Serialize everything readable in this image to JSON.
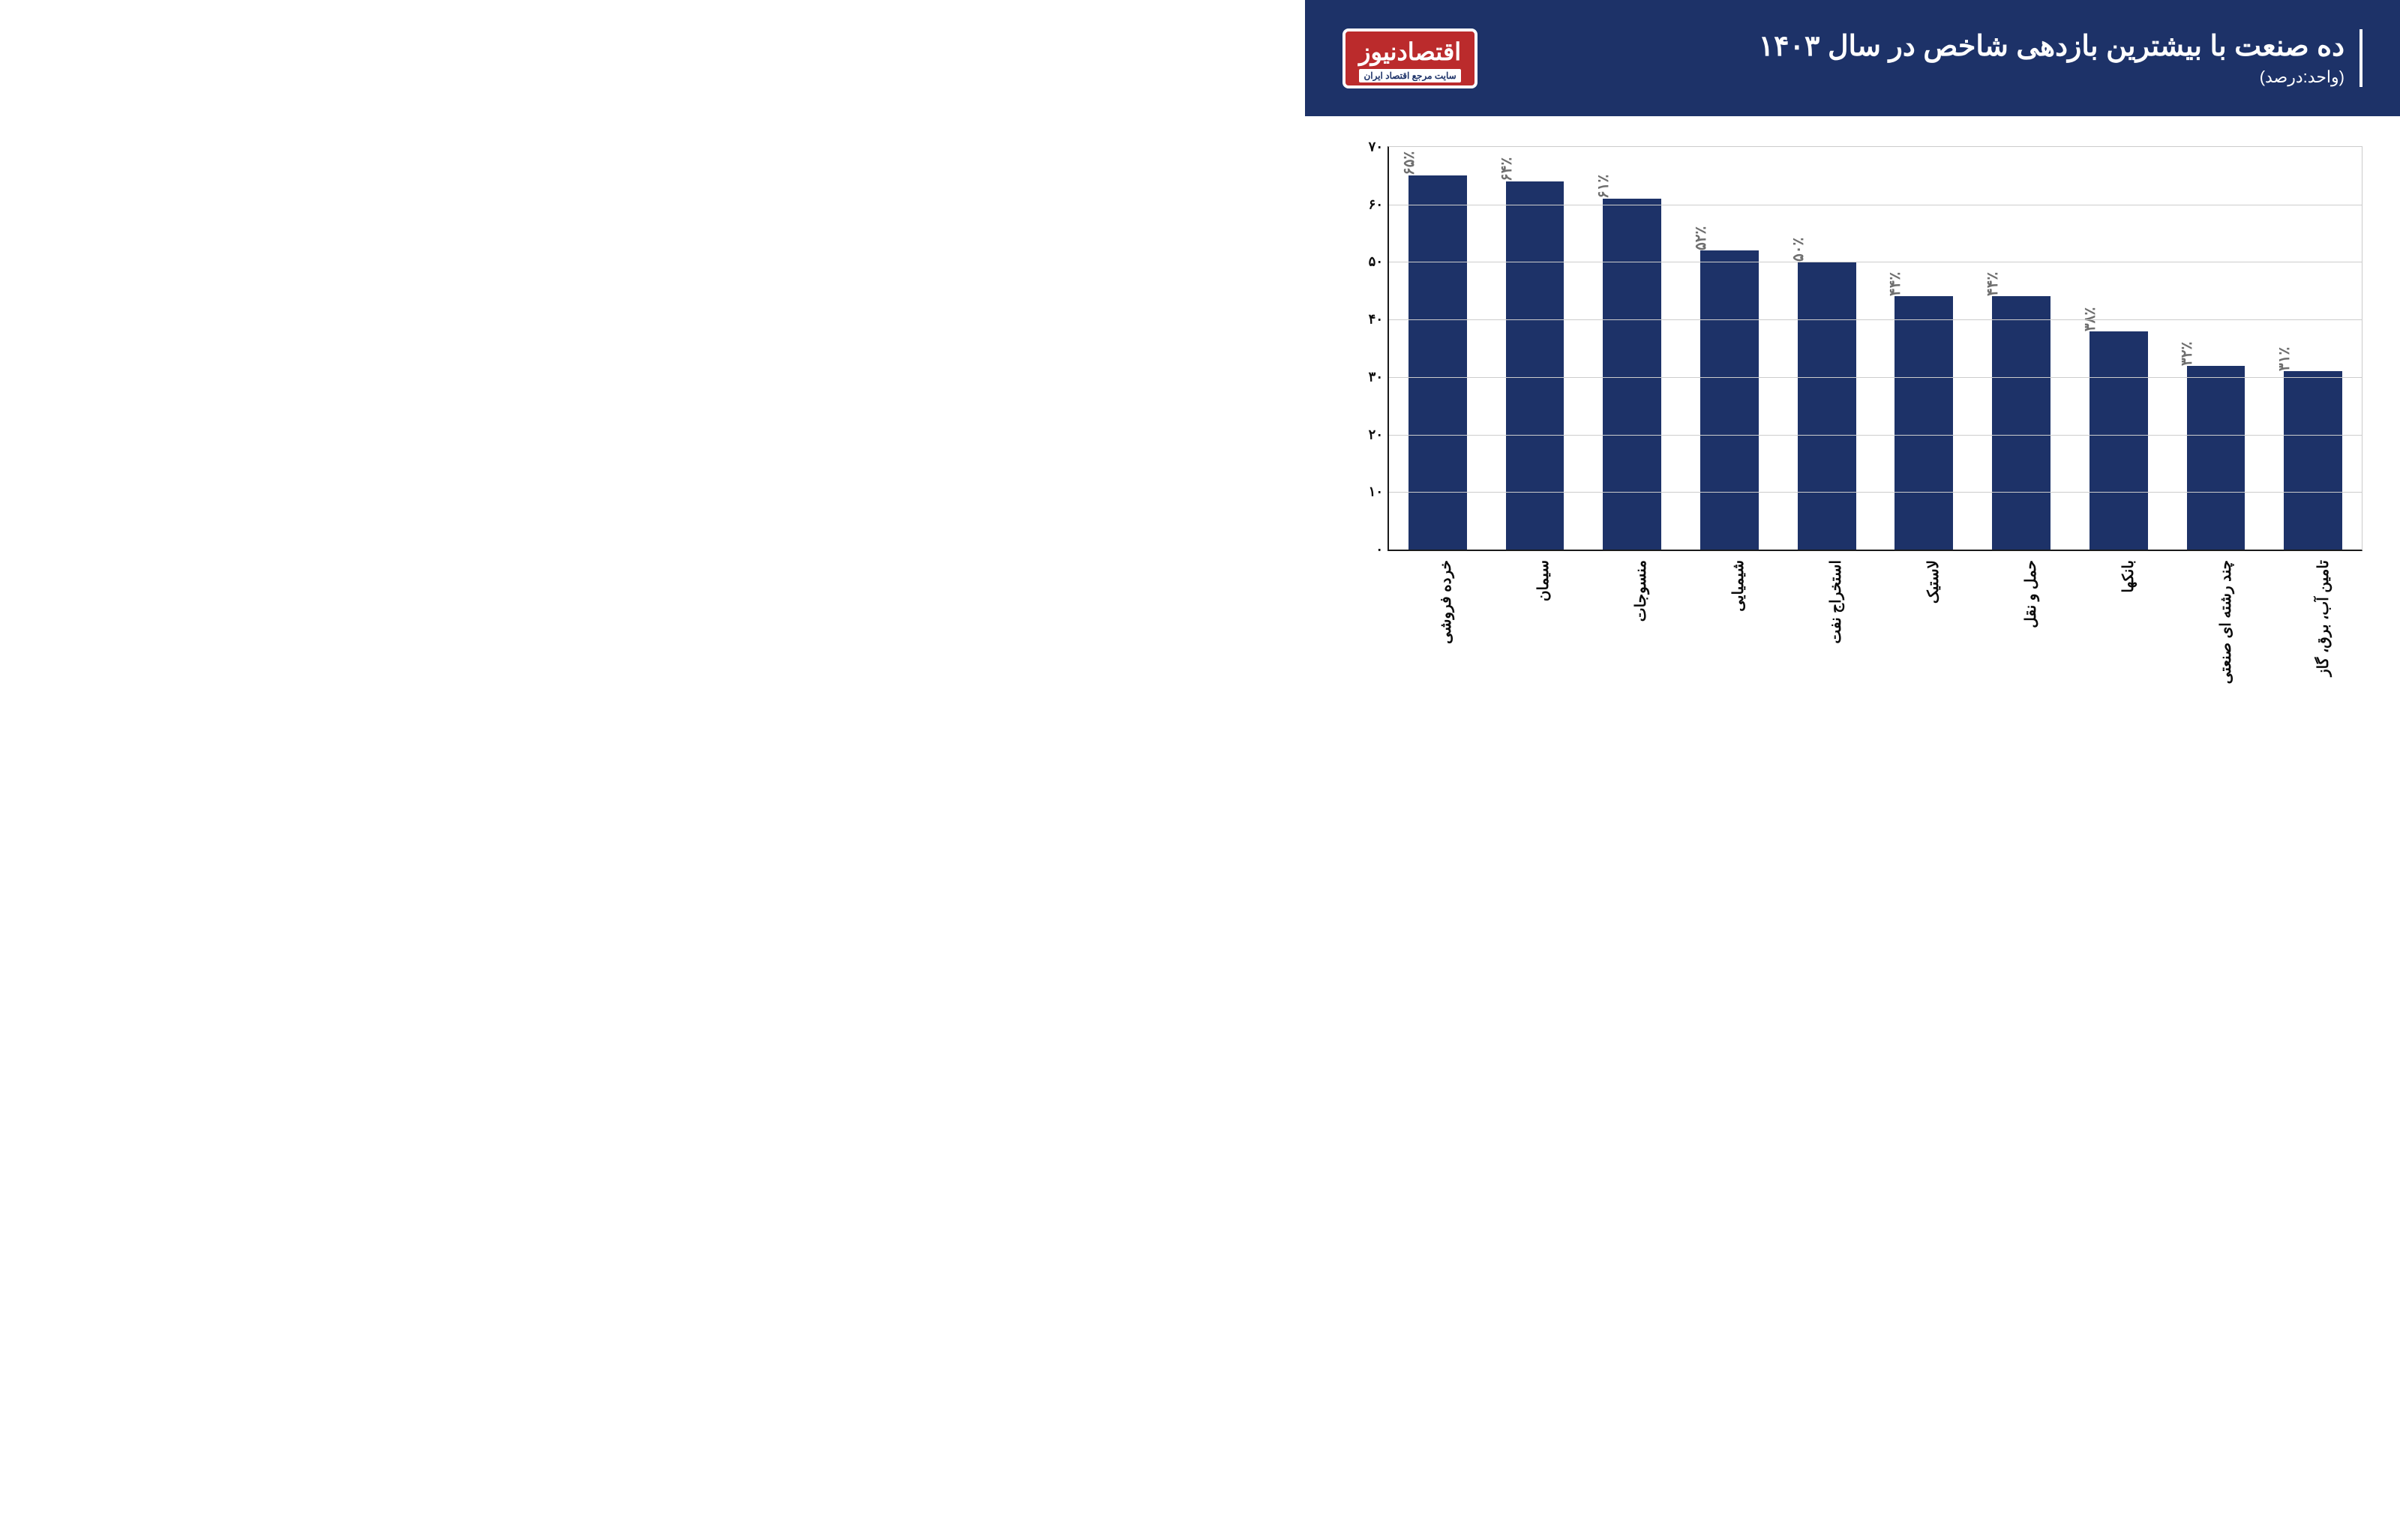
{
  "header": {
    "title": "ده صنعت با بیشترین بازدهی شاخص در سال ۱۴۰۳",
    "subtitle": "(واحد:درصد)",
    "logo_main": "اقتصادنیوز",
    "logo_sub": "سایت مرجع اقتصاد ایران"
  },
  "chart": {
    "type": "bar",
    "ylim": [
      0,
      70
    ],
    "ytick_step": 10,
    "yticks": [
      "۰",
      "۱۰",
      "۲۰",
      "۳۰",
      "۴۰",
      "۵۰",
      "۶۰",
      "۷۰"
    ],
    "bar_color": "#1d3268",
    "grid_color": "#cccccc",
    "axis_color": "#1a1a1a",
    "background_color": "#ffffff",
    "value_label_color": "#6f6f6f",
    "tick_label_color": "#0b0b0b",
    "bar_width_pct": 60,
    "title_fontsize": 38,
    "label_fontsize": 20,
    "categories": [
      "خرده فروشی",
      "سیمان",
      "منسوجات",
      "شیمیایی",
      "استخراج نفت",
      "لاستیک",
      "حمل و نقل",
      "بانکها",
      "چند رشته ای صنعتی",
      "تامین آب، برق، گاز"
    ],
    "values": [
      65,
      64,
      61,
      52,
      50,
      44,
      44,
      38,
      32,
      31
    ],
    "value_labels": [
      "۶۵٪",
      "۶۴٪",
      "۶۱٪",
      "۵۲٪",
      "۵۰٪",
      "۴۴٪",
      "۴۴٪",
      "۳۸٪",
      "۳۲٪",
      "۳۱٪"
    ]
  }
}
